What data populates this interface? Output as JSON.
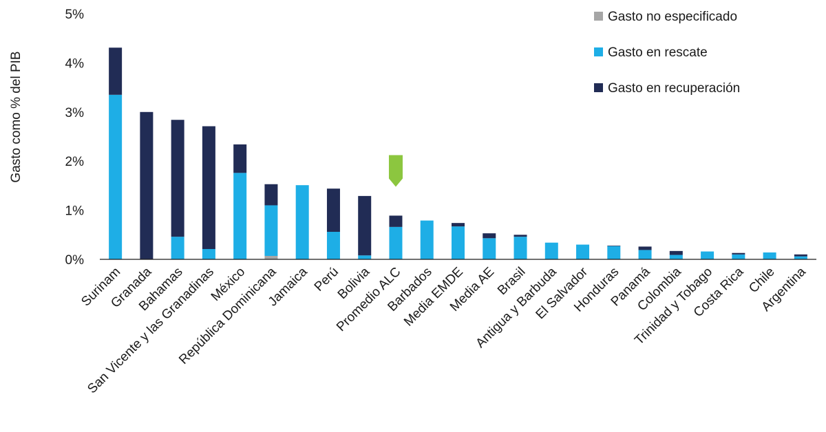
{
  "chart_data": {
    "type": "bar",
    "stacked": true,
    "ylabel": "Gasto como % del PIB",
    "xlabel": "",
    "ylim": [
      0,
      5
    ],
    "yticks": [
      "0%",
      "1%",
      "2%",
      "3%",
      "4%",
      "5%"
    ],
    "grid": false,
    "legend_position": "top-right",
    "categories": [
      "Surinam",
      "Granada",
      "Bahamas",
      "San Vicente y las Granadinas",
      "México",
      "República Dominicana",
      "Jamaica",
      "Perú",
      "Bolivia",
      "Promedio ALC",
      "Barbados",
      "Media EMDE",
      "Media AE",
      "Brasil",
      "Antigua y Barbuda",
      "El Salvador",
      "Honduras",
      "Panamá",
      "Colombia",
      "Trinidad y Tobago",
      "Costa Rica",
      "Chile",
      "Argentina"
    ],
    "series": [
      {
        "name": "Gasto no especificado",
        "color": "#a6a6a6",
        "values": [
          0,
          0,
          0,
          0,
          0,
          0.07,
          0,
          0,
          0,
          0,
          0,
          0,
          0,
          0,
          0,
          0,
          0,
          0,
          0,
          0,
          0,
          0,
          0
        ]
      },
      {
        "name": "Gasto en rescate",
        "color": "#1eaee6",
        "values": [
          3.35,
          0,
          0.46,
          0.21,
          1.76,
          1.03,
          1.51,
          0.56,
          0.08,
          0.66,
          0.79,
          0.67,
          0.43,
          0.46,
          0.34,
          0.3,
          0.27,
          0.19,
          0.09,
          0.16,
          0.1,
          0.14,
          0.06
        ]
      },
      {
        "name": "Gasto en recuperación",
        "color": "#212c55",
        "values": [
          0.96,
          3.0,
          2.38,
          2.5,
          0.58,
          0.43,
          0,
          0.88,
          1.21,
          0.23,
          0,
          0.07,
          0.1,
          0.04,
          0,
          0,
          0.01,
          0.07,
          0.08,
          0,
          0.03,
          0,
          0.04
        ]
      }
    ],
    "marker": {
      "category": "Promedio ALC",
      "color": "#8cc63f",
      "icon": "down-arrow-marker"
    }
  }
}
